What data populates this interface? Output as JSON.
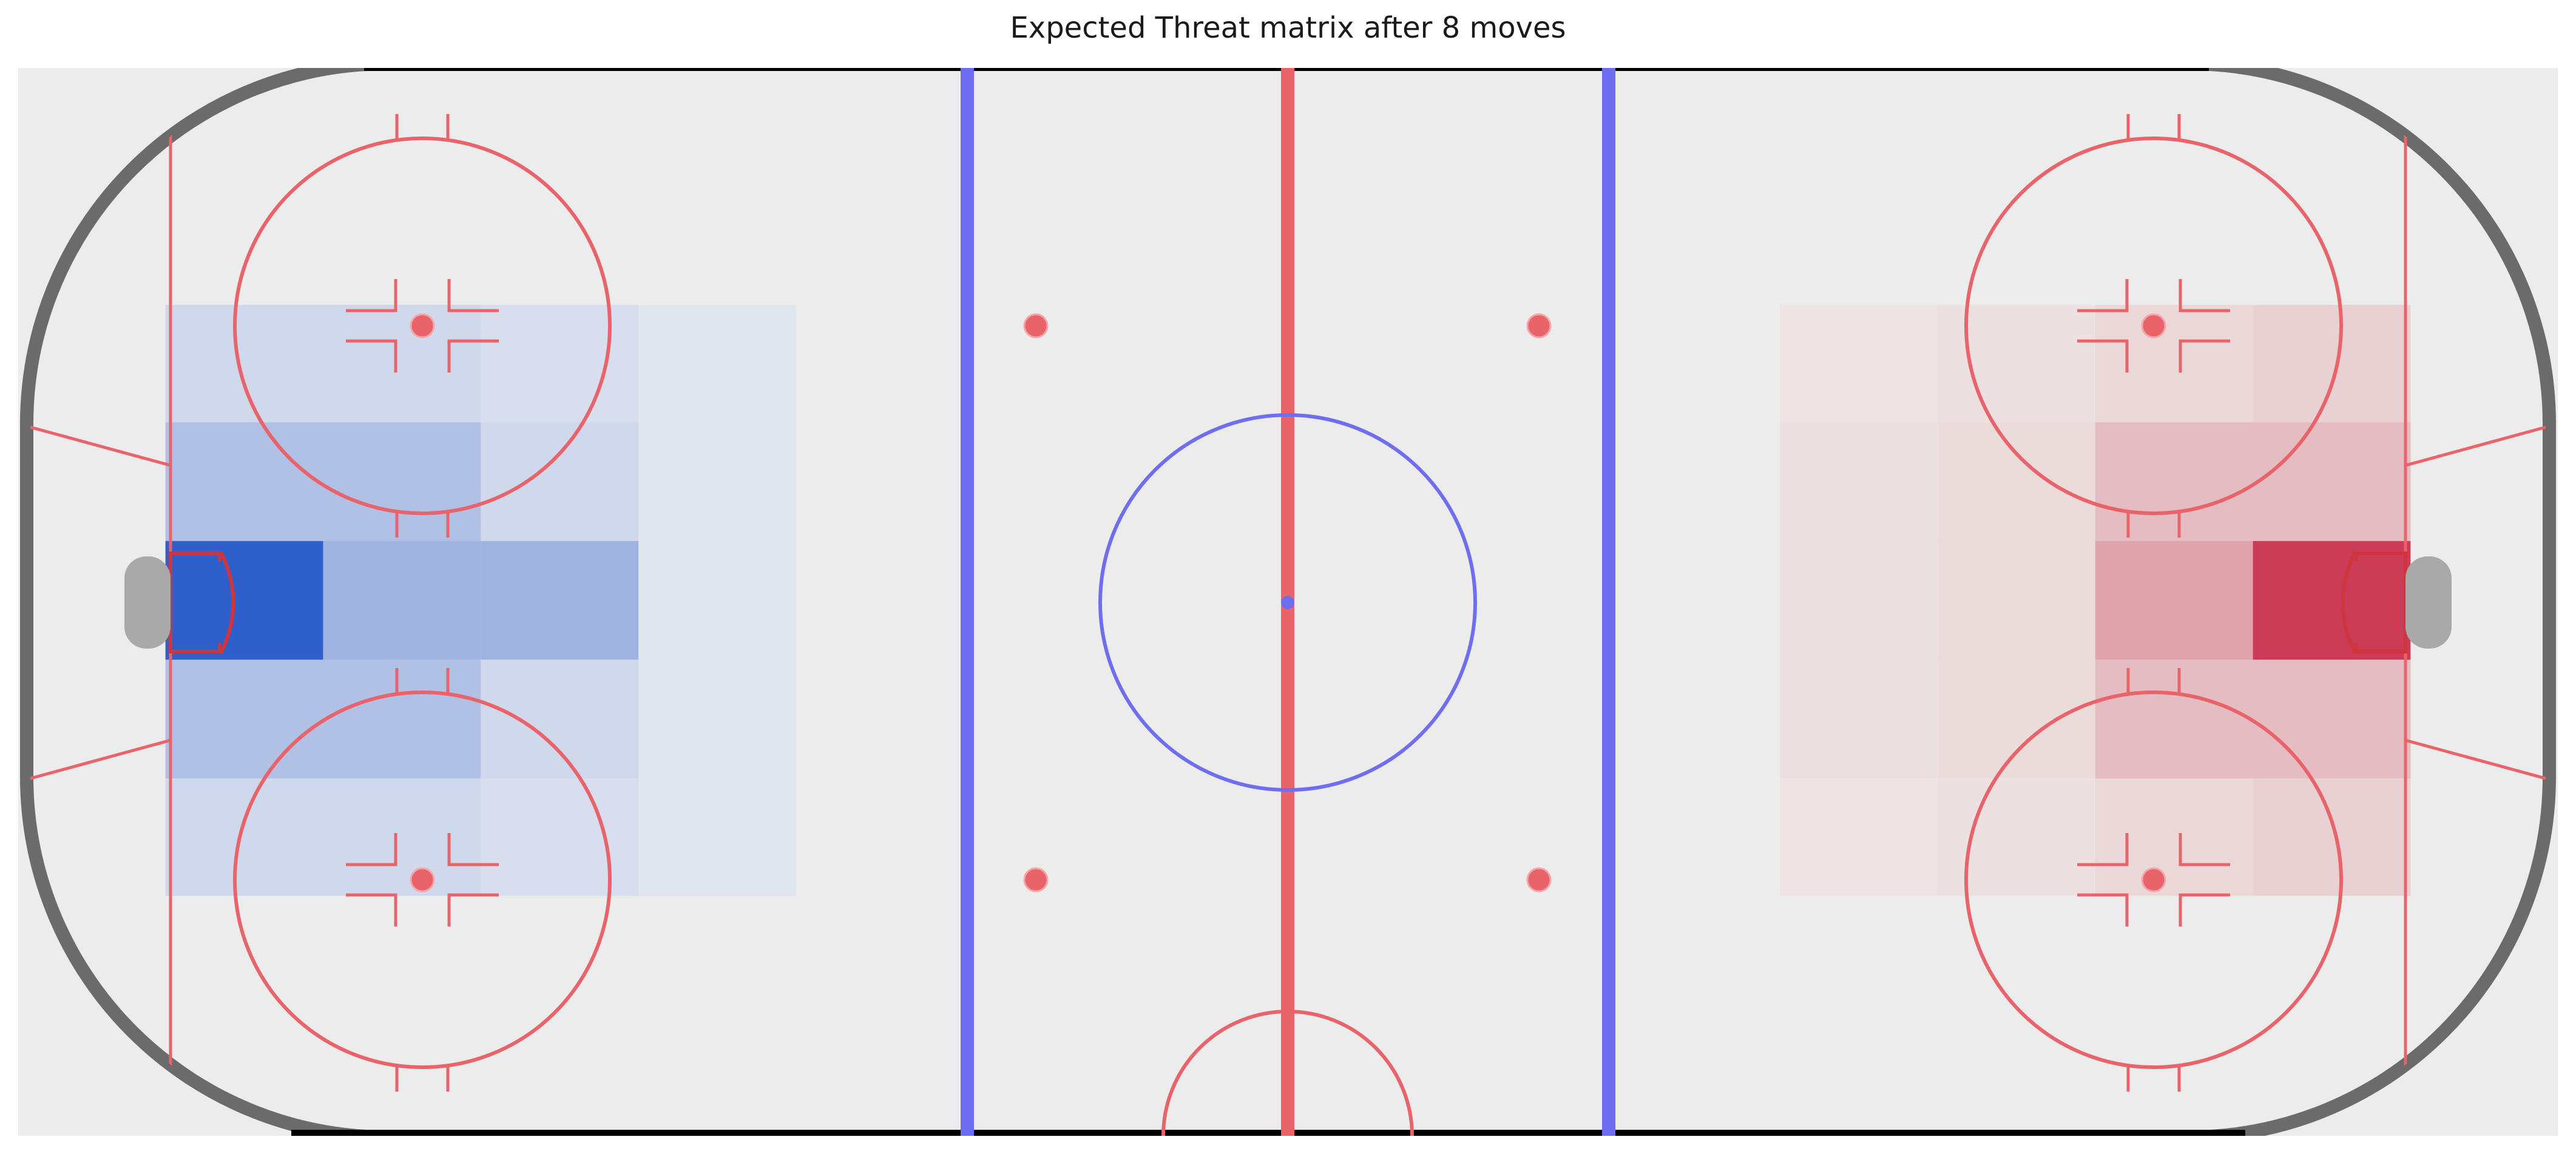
{
  "chart_data": {
    "type": "heatmap",
    "title": "Expected Threat matrix after 8 moves",
    "xlabel": "",
    "ylabel": "",
    "x_range": [
      -100,
      100
    ],
    "y_range": [
      -42.5,
      42.5
    ],
    "grid": false,
    "legend": "none",
    "cell_size_ft": 12.5,
    "left_zone": {
      "colormap": "blue",
      "x_edges": [
        -89,
        -76.5,
        -64,
        -51.5,
        -39
      ],
      "y_edges": [
        -23.4,
        -14.1,
        -4.7,
        4.7,
        14.1,
        23.4
      ],
      "values": [
        [
          0.25,
          0.25,
          0.18,
          0.08
        ],
        [
          0.45,
          0.45,
          0.25,
          0.08
        ],
        [
          1.0,
          0.55,
          0.55,
          0.1
        ],
        [
          0.45,
          0.45,
          0.25,
          0.08
        ],
        [
          0.25,
          0.25,
          0.18,
          0.08
        ]
      ]
    },
    "right_zone": {
      "colormap": "red",
      "x_edges": [
        39,
        51.5,
        64,
        76.5,
        89
      ],
      "y_edges": [
        -23.4,
        -14.1,
        -4.7,
        4.7,
        14.1,
        23.4
      ],
      "values": [
        [
          0.05,
          0.1,
          0.18,
          0.25
        ],
        [
          0.08,
          0.15,
          0.4,
          0.4
        ],
        [
          0.08,
          0.15,
          0.55,
          1.0
        ],
        [
          0.08,
          0.15,
          0.4,
          0.4
        ],
        [
          0.05,
          0.1,
          0.18,
          0.25
        ]
      ]
    }
  },
  "colors": {
    "ice": "#ececec",
    "boards_left": "#6b6b6b",
    "boards_edge": "#000000",
    "red_line": "#e8636a",
    "blue_line": "#6f6ef0",
    "net": "#a9a9a9",
    "crease_red": "#d0343d"
  }
}
